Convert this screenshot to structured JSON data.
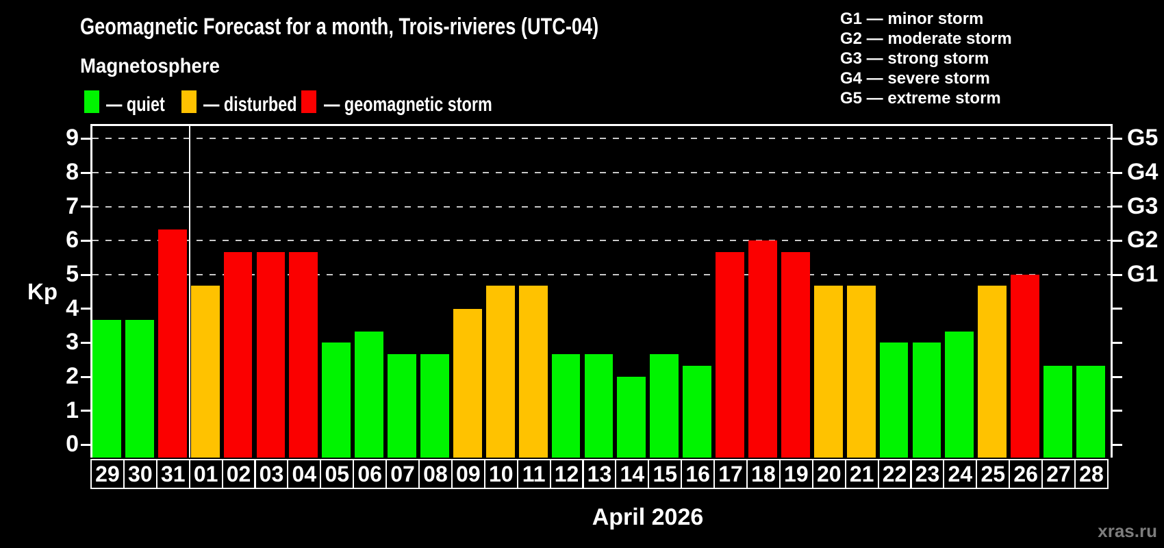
{
  "header": {
    "title": "Geomagnetic Forecast for a month, Trois-rivieres (UTC-04)",
    "subtitle": "Magnetosphere"
  },
  "legend": {
    "items": [
      {
        "status": "quiet",
        "label": "— quiet",
        "color": "#00f400"
      },
      {
        "status": "disturbed",
        "label": "— disturbed",
        "color": "#ffc200"
      },
      {
        "status": "storm",
        "label": "— geomagnetic storm",
        "color": "#fb0000"
      }
    ]
  },
  "g_scale_legend": {
    "lines": [
      "G1 — minor storm",
      "G2 — moderate storm",
      "G3 — strong storm",
      "G4 — severe storm",
      "G5 — extreme storm"
    ]
  },
  "watermark": "xras.ru",
  "chart_data": {
    "type": "bar",
    "title": "Geomagnetic Forecast for a month, Trois-rivieres (UTC-04)",
    "ylabel": "Kp",
    "xlabel": "April 2026",
    "month_label": "April 2026",
    "ylim": [
      -0.38,
      9.4
    ],
    "yticks": [
      0,
      1,
      2,
      3,
      4,
      5,
      6,
      7,
      8,
      9
    ],
    "gridlines_at": [
      5,
      6,
      7,
      8,
      9
    ],
    "grid": "dashed horizontal at storm levels only",
    "legend_position": "top",
    "right_axis_labels": [
      {
        "kp": 5,
        "label": "G1"
      },
      {
        "kp": 6,
        "label": "G2"
      },
      {
        "kp": 7,
        "label": "G3"
      },
      {
        "kp": 8,
        "label": "G4"
      },
      {
        "kp": 9,
        "label": "G5"
      }
    ],
    "month_separator_after_index": 2,
    "colors": {
      "quiet": "#00f400",
      "disturbed": "#ffc200",
      "storm": "#fb0000"
    },
    "categories": [
      "29",
      "30",
      "31",
      "01",
      "02",
      "03",
      "04",
      "05",
      "06",
      "07",
      "08",
      "09",
      "10",
      "11",
      "12",
      "13",
      "14",
      "15",
      "16",
      "17",
      "18",
      "19",
      "20",
      "21",
      "22",
      "23",
      "24",
      "25",
      "26",
      "27",
      "28"
    ],
    "values": [
      3.67,
      3.67,
      6.33,
      4.67,
      5.67,
      5.67,
      5.67,
      3.0,
      3.33,
      2.67,
      2.67,
      4.0,
      4.67,
      4.67,
      2.67,
      2.67,
      2.0,
      2.67,
      2.33,
      5.67,
      6.0,
      5.67,
      4.67,
      4.67,
      3.0,
      3.0,
      3.33,
      4.67,
      5.0,
      2.33,
      2.33
    ],
    "statuses": [
      "quiet",
      "quiet",
      "storm",
      "disturbed",
      "storm",
      "storm",
      "storm",
      "quiet",
      "quiet",
      "quiet",
      "quiet",
      "disturbed",
      "disturbed",
      "disturbed",
      "quiet",
      "quiet",
      "quiet",
      "quiet",
      "quiet",
      "storm",
      "storm",
      "storm",
      "disturbed",
      "disturbed",
      "quiet",
      "quiet",
      "quiet",
      "disturbed",
      "storm",
      "quiet",
      "quiet"
    ]
  }
}
